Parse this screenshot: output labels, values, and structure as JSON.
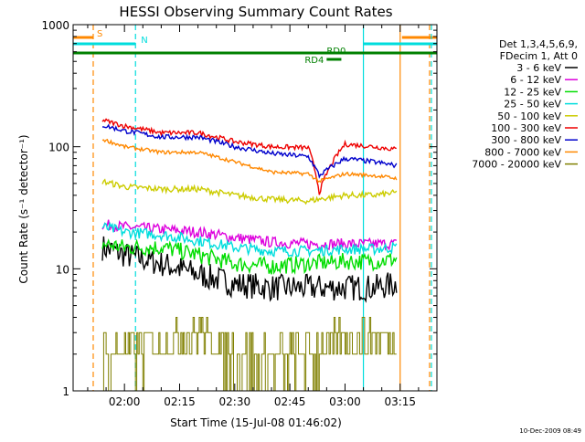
{
  "chart_data": {
    "type": "line",
    "title": "HESSI Observing Summary Count Rates",
    "xlabel": "Start Time (15-Jul-08 01:46:02)",
    "ylabel": "Count Rate (s⁻¹ detector⁻¹)",
    "y_scale": "log",
    "ylim": [
      1,
      1000
    ],
    "xlim": [
      "01:46:02",
      "03:25:00"
    ],
    "x_ticks": [
      "02:00",
      "02:15",
      "02:30",
      "02:45",
      "03:00",
      "03:15"
    ],
    "y_ticks": [
      "1",
      "10",
      "100",
      "1000"
    ],
    "grid": false,
    "legend_position": "right",
    "legend_header": [
      "Det 1,3,4,5,6,9,",
      "FDecim 1, Att 0"
    ],
    "timestamp": "10-Dec-2009 08:49",
    "data_start": "01:54",
    "data_end": "03:14",
    "series": [
      {
        "name": "3 - 6 keV",
        "color": "#000000",
        "x": [
          "01:54",
          "02:00",
          "02:10",
          "02:20",
          "02:30",
          "02:40",
          "02:50",
          "03:00",
          "03:08",
          "03:14"
        ],
        "y": [
          15,
          13,
          11,
          9,
          7.5,
          7,
          7,
          7,
          7,
          7.5
        ]
      },
      {
        "name": "6 - 12 keV",
        "color": "#dd00dd",
        "x": [
          "01:54",
          "02:00",
          "02:10",
          "02:20",
          "02:30",
          "02:40",
          "02:50",
          "03:00",
          "03:08",
          "03:14"
        ],
        "y": [
          23,
          22,
          21,
          20,
          18,
          16.5,
          16,
          16,
          16,
          16
        ]
      },
      {
        "name": "12 - 25 keV",
        "color": "#00dd00",
        "x": [
          "01:54",
          "02:00",
          "02:10",
          "02:20",
          "02:30",
          "02:40",
          "02:50",
          "03:00",
          "03:08",
          "03:14"
        ],
        "y": [
          16,
          15,
          15,
          13,
          11,
          10.5,
          11,
          11.5,
          11.5,
          12
        ]
      },
      {
        "name": "25 - 50 keV",
        "color": "#00dddd",
        "x": [
          "01:54",
          "02:00",
          "02:10",
          "02:20",
          "02:30",
          "02:40",
          "02:50",
          "03:00",
          "03:08",
          "03:14"
        ],
        "y": [
          22,
          20,
          19,
          17,
          15,
          14,
          14,
          14.5,
          14.5,
          15
        ]
      },
      {
        "name": "50 - 100 keV",
        "color": "#cccc00",
        "x": [
          "01:54",
          "02:00",
          "02:10",
          "02:20",
          "02:30",
          "02:40",
          "02:50",
          "03:00",
          "03:08",
          "03:14"
        ],
        "y": [
          52,
          47,
          45,
          45,
          40,
          37,
          36,
          40,
          40,
          42
        ]
      },
      {
        "name": "100 - 300 keV",
        "color": "#ee0000",
        "x": [
          "01:54",
          "02:00",
          "02:10",
          "02:20",
          "02:30",
          "02:40",
          "02:50",
          "02:53",
          "03:00",
          "03:08",
          "03:14"
        ],
        "y": [
          165,
          148,
          130,
          130,
          110,
          100,
          98,
          42,
          105,
          100,
          95
        ]
      },
      {
        "name": "300 - 800 keV",
        "color": "#0000cc",
        "x": [
          "01:54",
          "02:00",
          "02:10",
          "02:20",
          "02:30",
          "02:40",
          "02:50",
          "02:53",
          "03:00",
          "03:08",
          "03:14"
        ],
        "y": [
          150,
          135,
          120,
          120,
          100,
          88,
          83,
          58,
          80,
          75,
          70
        ]
      },
      {
        "name": "800 - 7000 keV",
        "color": "#ff8800",
        "x": [
          "01:54",
          "02:00",
          "02:10",
          "02:20",
          "02:30",
          "02:40",
          "02:50",
          "02:53",
          "03:00",
          "03:08",
          "03:14"
        ],
        "y": [
          115,
          100,
          90,
          90,
          75,
          62,
          60,
          52,
          60,
          58,
          55
        ]
      },
      {
        "name": "7000 - 20000 keV",
        "color": "#808000",
        "x": [
          "01:54",
          "02:00",
          "02:10",
          "02:20",
          "02:30",
          "02:40",
          "02:50",
          "03:00",
          "03:08",
          "03:14"
        ],
        "y": [
          2,
          2,
          2.5,
          3,
          2,
          1.7,
          2,
          2.8,
          3,
          2.5
        ]
      }
    ],
    "annotations": [
      {
        "label": "S",
        "color": "#ff8800",
        "segments": [
          [
            "01:46:02",
            "01:51:30"
          ],
          [
            "03:15:30",
            "03:25:00"
          ]
        ],
        "line": "03:15:00",
        "line_style": "solid"
      },
      {
        "label": "",
        "color": "#ff8800",
        "line": "01:51:30",
        "line_style": "dashed"
      },
      {
        "label": "",
        "color": "#ff8800",
        "line": "03:23:00",
        "line_style": "dashed"
      },
      {
        "label": "N",
        "color": "#00dddd",
        "segments": [
          [
            "01:46:02",
            "02:03:00"
          ],
          [
            "03:05:00",
            "03:25:00"
          ]
        ],
        "line": "03:05:00",
        "line_style": "solid"
      },
      {
        "label": "",
        "color": "#00dddd",
        "line": "02:03:00",
        "line_style": "dashed"
      },
      {
        "label": "",
        "color": "#00dddd",
        "line": "03:23:30",
        "line_style": "dashed"
      },
      {
        "label": "RD0",
        "color": "#008000",
        "segments": [
          [
            "01:46:02",
            "03:25:00"
          ]
        ]
      },
      {
        "label": "RD4",
        "color": "#008000",
        "segments": [
          [
            "02:55:00",
            "02:59:00"
          ]
        ]
      }
    ]
  }
}
